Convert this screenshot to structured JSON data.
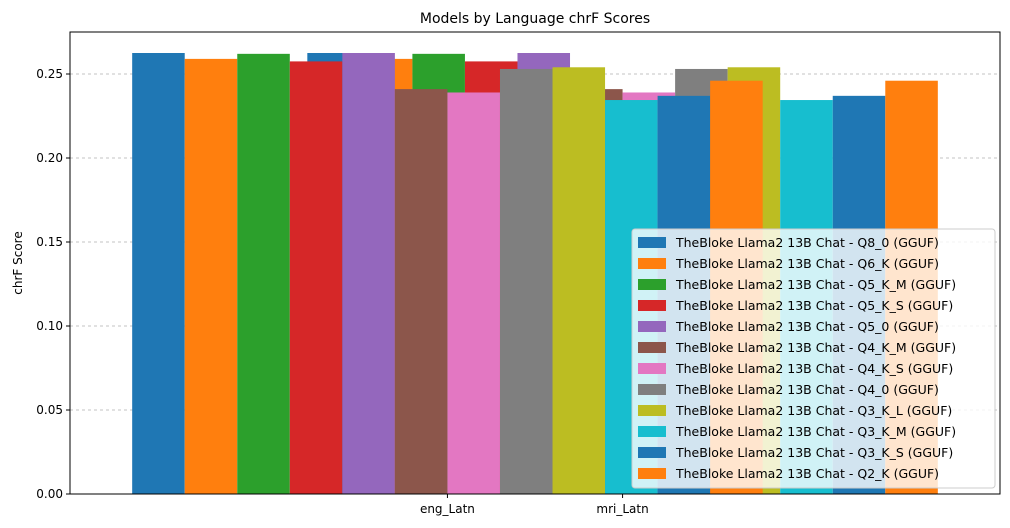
{
  "chart_data": {
    "type": "bar",
    "title": "Models by Language chrF Scores",
    "xlabel": "",
    "ylabel": "chrF Score",
    "categories": [
      "eng_Latn",
      "mri_Latn"
    ],
    "ylim": [
      0,
      0.275
    ],
    "yticks": [
      "0.00",
      "0.05",
      "0.10",
      "0.15",
      "0.20",
      "0.25"
    ],
    "ytick_values": [
      0,
      0.05,
      0.1,
      0.15,
      0.2,
      0.25
    ],
    "grid": "y-dashed",
    "legend_position": "lower-right",
    "series": [
      {
        "name": "TheBloke Llama2 13B Chat - Q8_0 (GGUF)",
        "color": "#1f77b4",
        "values": [
          0.2625,
          0.2625
        ]
      },
      {
        "name": "TheBloke Llama2 13B Chat - Q6_K (GGUF)",
        "color": "#ff7f0e",
        "values": [
          0.259,
          0.259
        ]
      },
      {
        "name": "TheBloke Llama2 13B Chat - Q5_K_M (GGUF)",
        "color": "#2ca02c",
        "values": [
          0.262,
          0.262
        ]
      },
      {
        "name": "TheBloke Llama2 13B Chat - Q5_K_S (GGUF)",
        "color": "#d62728",
        "values": [
          0.2575,
          0.2575
        ]
      },
      {
        "name": "TheBloke Llama2 13B Chat - Q5_0 (GGUF)",
        "color": "#9467bd",
        "values": [
          0.2625,
          0.2625
        ]
      },
      {
        "name": "TheBloke Llama2 13B Chat - Q4_K_M (GGUF)",
        "color": "#8c564b",
        "values": [
          0.241,
          0.241
        ]
      },
      {
        "name": "TheBloke Llama2 13B Chat - Q4_K_S (GGUF)",
        "color": "#e377c2",
        "values": [
          0.239,
          0.239
        ]
      },
      {
        "name": "TheBloke Llama2 13B Chat - Q4_0 (GGUF)",
        "color": "#7f7f7f",
        "values": [
          0.253,
          0.253
        ]
      },
      {
        "name": "TheBloke Llama2 13B Chat - Q3_K_L (GGUF)",
        "color": "#bcbd22",
        "values": [
          0.254,
          0.254
        ]
      },
      {
        "name": "TheBloke Llama2 13B Chat - Q3_K_M (GGUF)",
        "color": "#17becf",
        "values": [
          0.2345,
          0.2345
        ]
      },
      {
        "name": "TheBloke Llama2 13B Chat - Q3_K_S (GGUF)",
        "color": "#1f77b4",
        "values": [
          0.237,
          0.237
        ]
      },
      {
        "name": "TheBloke Llama2 13B Chat - Q2_K (GGUF)",
        "color": "#ff7f0e",
        "values": [
          0.246,
          0.246
        ]
      }
    ]
  }
}
